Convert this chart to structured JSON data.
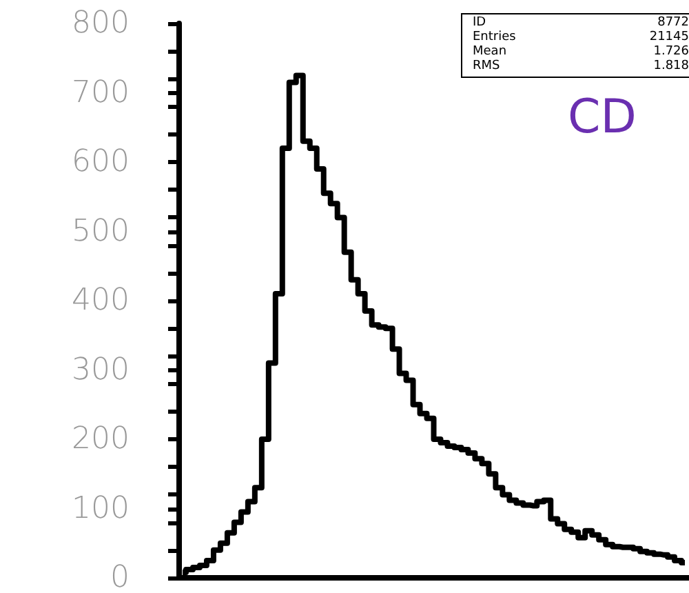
{
  "chart_data": {
    "type": "step",
    "categories": [
      null,
      null,
      null,
      null,
      null,
      null,
      null,
      null,
      null,
      null,
      null,
      null,
      null,
      null,
      null,
      null,
      null,
      null,
      null,
      null,
      null,
      null,
      null,
      null,
      null,
      null,
      null,
      null,
      null,
      null,
      null,
      null,
      null,
      null,
      null,
      null,
      null,
      null,
      null,
      null,
      null,
      null,
      null,
      null,
      null,
      null,
      null,
      null,
      null,
      null,
      null,
      null,
      null,
      null,
      null,
      null,
      null,
      null,
      null,
      null,
      null,
      null,
      null,
      null,
      null,
      null,
      null,
      null,
      null,
      null,
      null,
      null,
      null,
      null
    ],
    "values": [
      8,
      12,
      15,
      18,
      25,
      40,
      50,
      65,
      80,
      95,
      110,
      130,
      200,
      310,
      410,
      620,
      715,
      725,
      630,
      620,
      590,
      555,
      540,
      520,
      470,
      430,
      410,
      385,
      365,
      362,
      360,
      330,
      295,
      285,
      250,
      237,
      230,
      200,
      195,
      190,
      188,
      185,
      180,
      172,
      165,
      150,
      130,
      120,
      112,
      108,
      105,
      104,
      110,
      112,
      85,
      78,
      70,
      66,
      58,
      68,
      62,
      55,
      48,
      45,
      44,
      44,
      42,
      38,
      36,
      34,
      33,
      30,
      25,
      22
    ],
    "color": "#000000",
    "ylim": [
      0,
      800
    ],
    "yticks": [
      0,
      100,
      200,
      300,
      400,
      500,
      600,
      700,
      800
    ],
    "grid": false,
    "marker": "none",
    "line_style": "solid",
    "annotations": [
      "CD",
      "ID",
      "8772",
      "Entries",
      "21145",
      "Mean",
      "1.726",
      "RMS",
      "1.818"
    ]
  }
}
